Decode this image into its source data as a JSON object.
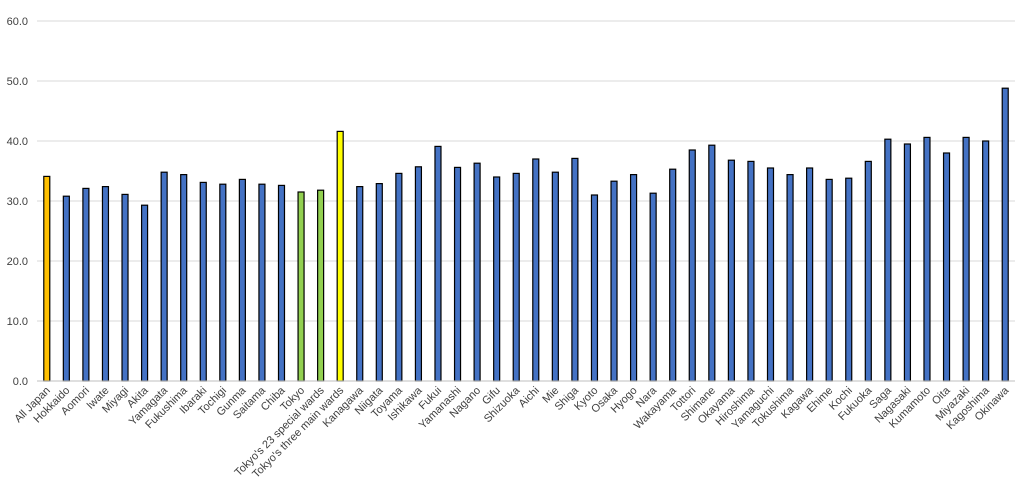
{
  "chart_data": {
    "type": "bar",
    "title": "",
    "xlabel": "",
    "ylabel": "",
    "ylim": [
      0,
      60
    ],
    "yticks": [
      "0.0",
      "10.0",
      "20.0",
      "30.0",
      "40.0",
      "50.0",
      "60.0"
    ],
    "grid": true,
    "legend": "none",
    "colors": {
      "default": "#4472c4",
      "all_japan": "#ffc000",
      "tokyo_group": "#92d050",
      "three_main_wards": "#ffff00"
    },
    "categories": [
      "All Japan",
      "Hokkaido",
      "Aomori",
      "Iwate",
      "Miyagi",
      "Akita",
      "Yamagata",
      "Fukushima",
      "Ibaraki",
      "Tochigi",
      "Gunma",
      "Saitama",
      "Chiba",
      "Tokyo",
      "Tokyo's 23 special wards",
      "Tokyo's three main wards",
      "Kanagawa",
      "Niigata",
      "Toyama",
      "Ishikawa",
      "Fukui",
      "Yamanashi",
      "Nagano",
      "Gifu",
      "Shizuoka",
      "Aichi",
      "Mie",
      "Shiga",
      "Kyoto",
      "Osaka",
      "Hyogo",
      "Nara",
      "Wakayama",
      "Tottori",
      "Shimane",
      "Okayama",
      "Hiroshima",
      "Yamaguchi",
      "Tokushima",
      "Kagawa",
      "Ehime",
      "Kochi",
      "Fukuoka",
      "Saga",
      "Nagasaki",
      "Kumamoto",
      "Oita",
      "Miyazaki",
      "Kagoshima",
      "Okinawa"
    ],
    "values": [
      34.1,
      30.8,
      32.1,
      32.4,
      31.1,
      29.3,
      34.8,
      34.4,
      33.1,
      32.8,
      33.6,
      32.8,
      32.6,
      31.5,
      31.8,
      41.6,
      32.4,
      32.9,
      34.6,
      35.7,
      39.1,
      35.6,
      36.3,
      34.0,
      34.6,
      37.0,
      34.8,
      37.1,
      31.0,
      33.3,
      34.4,
      31.3,
      35.3,
      38.5,
      39.3,
      36.8,
      36.6,
      35.5,
      34.4,
      35.5,
      33.6,
      33.8,
      36.6,
      40.3,
      39.5,
      40.6,
      38.0,
      40.6,
      40.0,
      48.8
    ],
    "bar_colors": [
      "all_japan",
      "default",
      "default",
      "default",
      "default",
      "default",
      "default",
      "default",
      "default",
      "default",
      "default",
      "default",
      "default",
      "tokyo_group",
      "tokyo_group",
      "three_main_wards",
      "default",
      "default",
      "default",
      "default",
      "default",
      "default",
      "default",
      "default",
      "default",
      "default",
      "default",
      "default",
      "default",
      "default",
      "default",
      "default",
      "default",
      "default",
      "default",
      "default",
      "default",
      "default",
      "default",
      "default",
      "default",
      "default",
      "default",
      "default",
      "default",
      "default",
      "default",
      "default",
      "default",
      "default"
    ]
  }
}
